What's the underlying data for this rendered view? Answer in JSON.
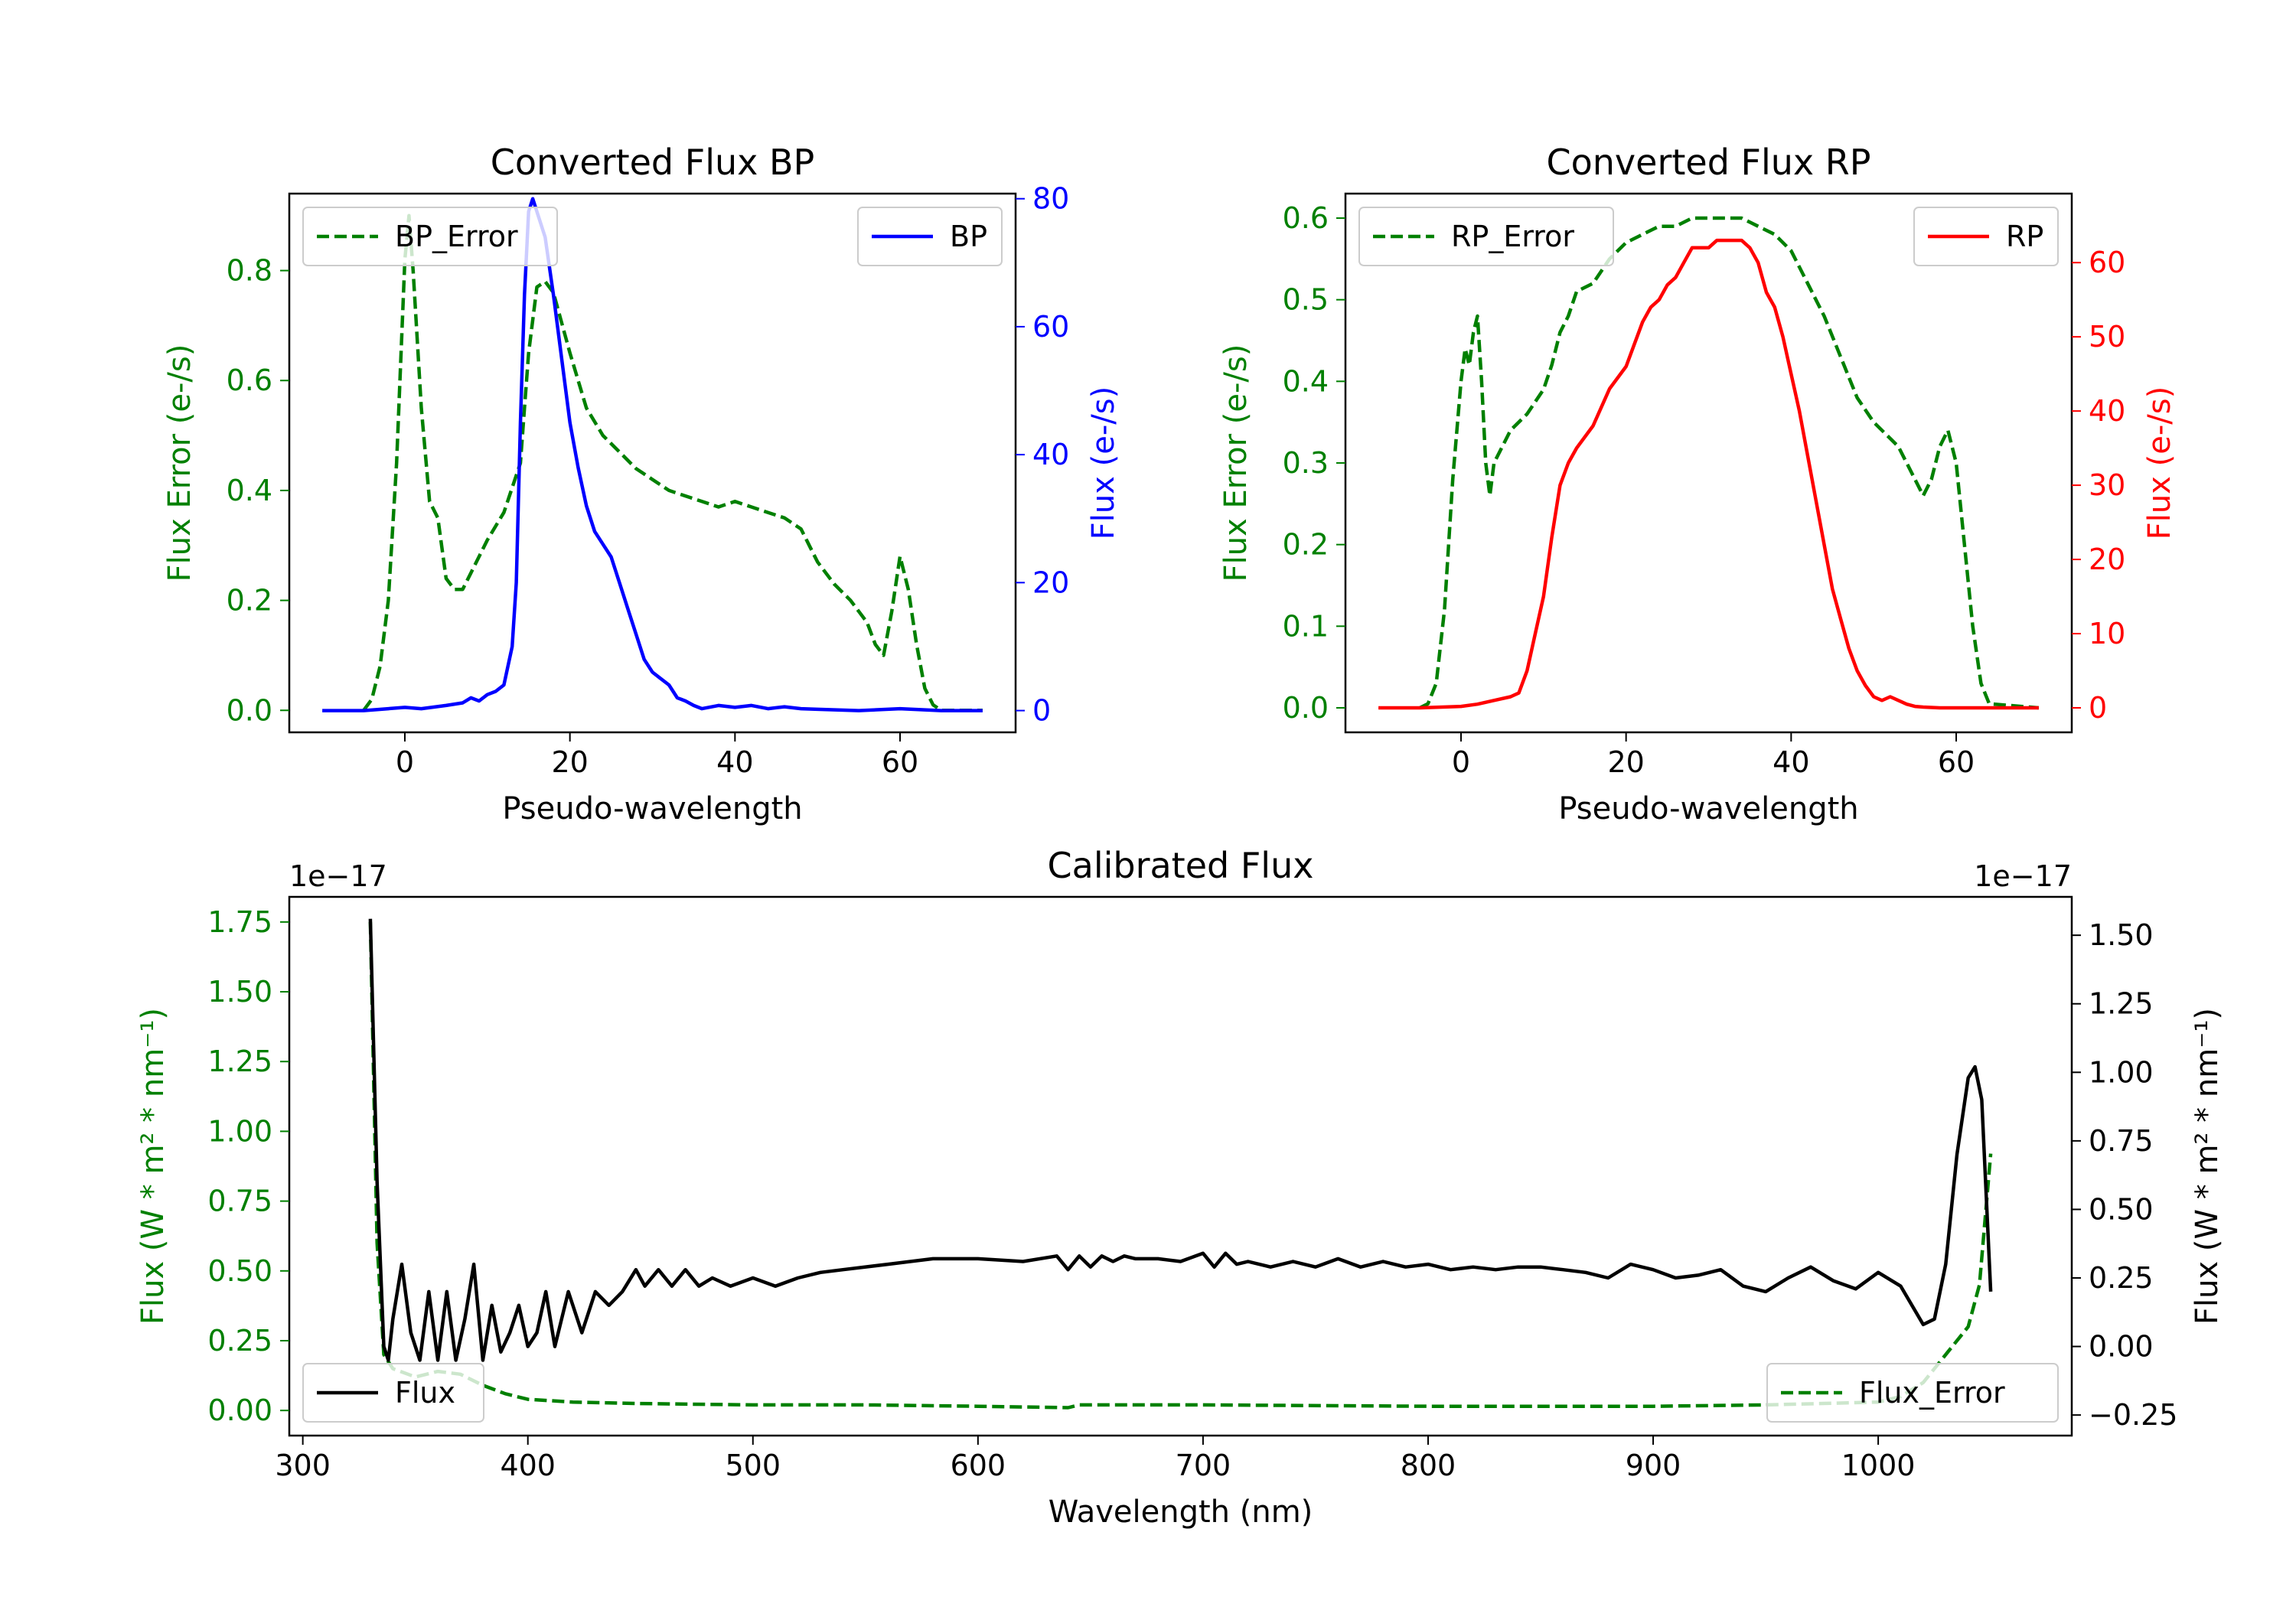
{
  "chart_data": [
    {
      "type": "line",
      "title": "Converted Flux BP",
      "xlabel": "Pseudo-wavelength",
      "ylabel_left": "Flux Error (e-/s)",
      "ylabel_right": "Flux (e-/s)",
      "xlim": [
        -14,
        74
      ],
      "ylim_left": [
        -0.04,
        0.94
      ],
      "ylim_right": [
        -3.4,
        80.8
      ],
      "xticks": [
        0,
        20,
        40,
        60
      ],
      "yticks_left": [
        0.0,
        0.2,
        0.4,
        0.6,
        0.8
      ],
      "yticks_left_labels": [
        "0.0",
        "0.2",
        "0.4",
        "0.6",
        "0.8"
      ],
      "yticks_right": [
        0,
        20,
        40,
        60,
        80
      ],
      "yticks_right_labels": [
        "0",
        "20",
        "40",
        "60",
        "80"
      ],
      "left_color": "#008000",
      "right_color": "#0000ff",
      "series": [
        {
          "name": "BP_Error",
          "axis": "left",
          "style": "dashed",
          "color": "#008000",
          "legend": "top-left",
          "x": [
            -5,
            -4,
            -3,
            -2,
            -1,
            0,
            0.5,
            1,
            2,
            3,
            4,
            5,
            6,
            7,
            8,
            10,
            12,
            14,
            14.5,
            15,
            16,
            17,
            18,
            20,
            22,
            24,
            26,
            28,
            30,
            32,
            34,
            36,
            38,
            40,
            42,
            44,
            46,
            48,
            50,
            52,
            54,
            56,
            57,
            58,
            59,
            60,
            61,
            62,
            63,
            64,
            65,
            70
          ],
          "values": [
            0.0,
            0.02,
            0.08,
            0.2,
            0.45,
            0.82,
            0.9,
            0.8,
            0.55,
            0.38,
            0.35,
            0.24,
            0.22,
            0.22,
            0.25,
            0.31,
            0.36,
            0.45,
            0.55,
            0.65,
            0.77,
            0.78,
            0.76,
            0.65,
            0.55,
            0.5,
            0.47,
            0.44,
            0.42,
            0.4,
            0.39,
            0.38,
            0.37,
            0.38,
            0.37,
            0.36,
            0.35,
            0.33,
            0.27,
            0.23,
            0.2,
            0.16,
            0.12,
            0.1,
            0.18,
            0.28,
            0.22,
            0.12,
            0.04,
            0.01,
            0.0,
            0.0
          ]
        },
        {
          "name": "BP",
          "axis": "right",
          "style": "solid",
          "color": "#0000ff",
          "legend": "top-right",
          "x": [
            -10,
            -5,
            -2,
            0,
            2,
            5,
            7,
            8,
            9,
            10,
            11,
            12,
            13,
            13.5,
            14,
            14.5,
            15,
            15.5,
            16,
            17,
            18,
            19,
            20,
            21,
            22,
            23,
            24,
            25,
            26,
            27,
            28,
            29,
            30,
            31,
            32,
            33,
            34,
            35,
            36,
            38,
            40,
            42,
            44,
            46,
            48,
            50,
            55,
            60,
            65,
            70
          ],
          "values": [
            0,
            0,
            0.3,
            0.5,
            0.3,
            0.8,
            1.2,
            2.0,
            1.5,
            2.5,
            3.0,
            4.0,
            10,
            20,
            45,
            65,
            78,
            80,
            78,
            74,
            65,
            55,
            45,
            38,
            32,
            28,
            26,
            24,
            20,
            16,
            12,
            8,
            6,
            5,
            4,
            2,
            1.5,
            0.8,
            0.3,
            0.8,
            0.5,
            0.8,
            0.3,
            0.6,
            0.3,
            0.2,
            0,
            0.3,
            0,
            0
          ]
        }
      ]
    },
    {
      "type": "line",
      "title": "Converted Flux RP",
      "xlabel": "Pseudo-wavelength",
      "ylabel_left": "Flux Error (e-/s)",
      "ylabel_right": "Flux (e-/s)",
      "xlim": [
        -14,
        74
      ],
      "ylim_left": [
        -0.03,
        0.63
      ],
      "ylim_right": [
        -3.3,
        69.3
      ],
      "xticks": [
        0,
        20,
        40,
        60
      ],
      "yticks_left": [
        0.0,
        0.1,
        0.2,
        0.3,
        0.4,
        0.5,
        0.6
      ],
      "yticks_left_labels": [
        "0.0",
        "0.1",
        "0.2",
        "0.3",
        "0.4",
        "0.5",
        "0.6"
      ],
      "yticks_right": [
        0,
        10,
        20,
        30,
        40,
        50,
        60
      ],
      "yticks_right_labels": [
        "0",
        "10",
        "20",
        "30",
        "40",
        "50",
        "60"
      ],
      "left_color": "#008000",
      "right_color": "#ff0000",
      "series": [
        {
          "name": "RP_Error",
          "axis": "left",
          "style": "dashed",
          "color": "#008000",
          "legend": "top-left",
          "x": [
            -5,
            -4,
            -3,
            -2,
            -1,
            0,
            0.5,
            1,
            1.5,
            2,
            2.5,
            3,
            3.5,
            4,
            5,
            6,
            8,
            10,
            11,
            12,
            13,
            14,
            16,
            18,
            20,
            22,
            24,
            26,
            28,
            30,
            32,
            34,
            36,
            38,
            40,
            42,
            44,
            46,
            48,
            50,
            52,
            53,
            54,
            55,
            56,
            57,
            58,
            58.5,
            59,
            60,
            61,
            62,
            63,
            64,
            70
          ],
          "values": [
            0.0,
            0.005,
            0.03,
            0.12,
            0.28,
            0.4,
            0.44,
            0.42,
            0.46,
            0.48,
            0.4,
            0.3,
            0.26,
            0.3,
            0.32,
            0.34,
            0.36,
            0.39,
            0.42,
            0.46,
            0.48,
            0.51,
            0.52,
            0.55,
            0.57,
            0.58,
            0.59,
            0.59,
            0.6,
            0.6,
            0.6,
            0.6,
            0.59,
            0.58,
            0.56,
            0.52,
            0.48,
            0.43,
            0.38,
            0.35,
            0.33,
            0.32,
            0.3,
            0.28,
            0.26,
            0.28,
            0.32,
            0.33,
            0.34,
            0.3,
            0.2,
            0.1,
            0.03,
            0.005,
            0.0
          ]
        },
        {
          "name": "RP",
          "axis": "right",
          "style": "solid",
          "color": "#ff0000",
          "legend": "top-right",
          "x": [
            -10,
            -5,
            0,
            2,
            4,
            6,
            7,
            8,
            9,
            10,
            11,
            12,
            13,
            14,
            16,
            18,
            20,
            22,
            23,
            24,
            25,
            26,
            27,
            28,
            29,
            30,
            31,
            32,
            33,
            34,
            35,
            36,
            37,
            38,
            39,
            40,
            41,
            42,
            43,
            44,
            45,
            46,
            47,
            48,
            49,
            50,
            51,
            52,
            53,
            54,
            55,
            56,
            58,
            60,
            70
          ],
          "values": [
            0,
            0,
            0.2,
            0.5,
            1.0,
            1.5,
            2.0,
            5,
            10,
            15,
            23,
            30,
            33,
            35,
            38,
            43,
            46,
            52,
            54,
            55,
            57,
            58,
            60,
            62,
            62,
            62,
            63,
            63,
            63,
            63,
            62,
            60,
            56,
            54,
            50,
            45,
            40,
            34,
            28,
            22,
            16,
            12,
            8,
            5,
            3,
            1.5,
            1.0,
            1.5,
            1.0,
            0.5,
            0.2,
            0.1,
            0,
            0,
            0
          ]
        }
      ]
    },
    {
      "type": "line",
      "title": "Calibrated Flux",
      "xlabel": "Wavelength (nm)",
      "ylabel_left": "Flux (W * m² * nm⁻¹)",
      "ylabel_right": "Flux (W * m² * nm⁻¹)",
      "offset_left": "1e−17",
      "offset_right": "1e−17",
      "xlim": [
        294,
        1086
      ],
      "ylim_left": [
        -0.09,
        1.84
      ],
      "ylim_right": [
        -0.325,
        1.64
      ],
      "xticks": [
        300,
        400,
        500,
        600,
        700,
        800,
        900,
        1000
      ],
      "yticks_left": [
        0.0,
        0.25,
        0.5,
        0.75,
        1.0,
        1.25,
        1.5,
        1.75
      ],
      "yticks_left_labels": [
        "0.00",
        "0.25",
        "0.50",
        "0.75",
        "1.00",
        "1.25",
        "1.50",
        "1.75"
      ],
      "yticks_right": [
        -0.25,
        0.0,
        0.25,
        0.5,
        0.75,
        1.0,
        1.25,
        1.5
      ],
      "yticks_right_labels": [
        "−0.25",
        "0.00",
        "0.25",
        "0.50",
        "0.75",
        "1.00",
        "1.25",
        "1.50"
      ],
      "left_color": "#008000",
      "right_color": "#000000",
      "series": [
        {
          "name": "Flux_Error",
          "axis": "left",
          "style": "dashed",
          "color": "#008000",
          "legend": "bottom-right",
          "x": [
            330,
            333,
            336,
            340,
            350,
            360,
            370,
            380,
            390,
            400,
            420,
            450,
            500,
            550,
            600,
            640,
            645,
            700,
            800,
            900,
            950,
            1000,
            1010,
            1020,
            1030,
            1035,
            1040,
            1045,
            1050
          ],
          "values": [
            1.75,
            0.6,
            0.2,
            0.15,
            0.12,
            0.14,
            0.13,
            0.09,
            0.06,
            0.04,
            0.03,
            0.025,
            0.02,
            0.02,
            0.015,
            0.01,
            0.02,
            0.02,
            0.015,
            0.015,
            0.02,
            0.03,
            0.05,
            0.1,
            0.2,
            0.25,
            0.3,
            0.45,
            0.92
          ]
        },
        {
          "name": "Flux",
          "axis": "right",
          "style": "solid",
          "color": "#000000",
          "legend": "bottom-left",
          "x": [
            330,
            333,
            336,
            338,
            340,
            344,
            348,
            352,
            356,
            360,
            364,
            368,
            372,
            376,
            380,
            384,
            388,
            392,
            396,
            400,
            404,
            408,
            412,
            418,
            424,
            430,
            436,
            442,
            448,
            452,
            458,
            464,
            470,
            476,
            482,
            490,
            500,
            510,
            520,
            530,
            540,
            560,
            580,
            600,
            620,
            635,
            640,
            645,
            650,
            655,
            660,
            665,
            670,
            680,
            690,
            700,
            705,
            710,
            715,
            720,
            730,
            740,
            750,
            760,
            770,
            780,
            790,
            800,
            810,
            820,
            830,
            840,
            850,
            860,
            870,
            880,
            890,
            900,
            910,
            920,
            930,
            940,
            950,
            960,
            970,
            980,
            990,
            1000,
            1010,
            1020,
            1025,
            1030,
            1035,
            1040,
            1043,
            1046,
            1050
          ],
          "values": [
            1.56,
            0.6,
            0.0,
            -0.05,
            0.1,
            0.3,
            0.05,
            -0.05,
            0.2,
            -0.05,
            0.2,
            -0.05,
            0.1,
            0.3,
            -0.05,
            0.15,
            -0.02,
            0.05,
            0.15,
            0.0,
            0.05,
            0.2,
            0.0,
            0.2,
            0.05,
            0.2,
            0.15,
            0.2,
            0.28,
            0.22,
            0.28,
            0.22,
            0.28,
            0.22,
            0.25,
            0.22,
            0.25,
            0.22,
            0.25,
            0.27,
            0.28,
            0.3,
            0.32,
            0.32,
            0.31,
            0.33,
            0.28,
            0.33,
            0.29,
            0.33,
            0.31,
            0.33,
            0.32,
            0.32,
            0.31,
            0.34,
            0.29,
            0.34,
            0.3,
            0.31,
            0.29,
            0.31,
            0.29,
            0.32,
            0.29,
            0.31,
            0.29,
            0.3,
            0.28,
            0.29,
            0.28,
            0.29,
            0.29,
            0.28,
            0.27,
            0.25,
            0.3,
            0.28,
            0.25,
            0.26,
            0.28,
            0.22,
            0.2,
            0.25,
            0.29,
            0.24,
            0.21,
            0.27,
            0.22,
            0.08,
            0.1,
            0.3,
            0.7,
            0.98,
            1.02,
            0.9,
            0.2
          ]
        }
      ]
    }
  ]
}
